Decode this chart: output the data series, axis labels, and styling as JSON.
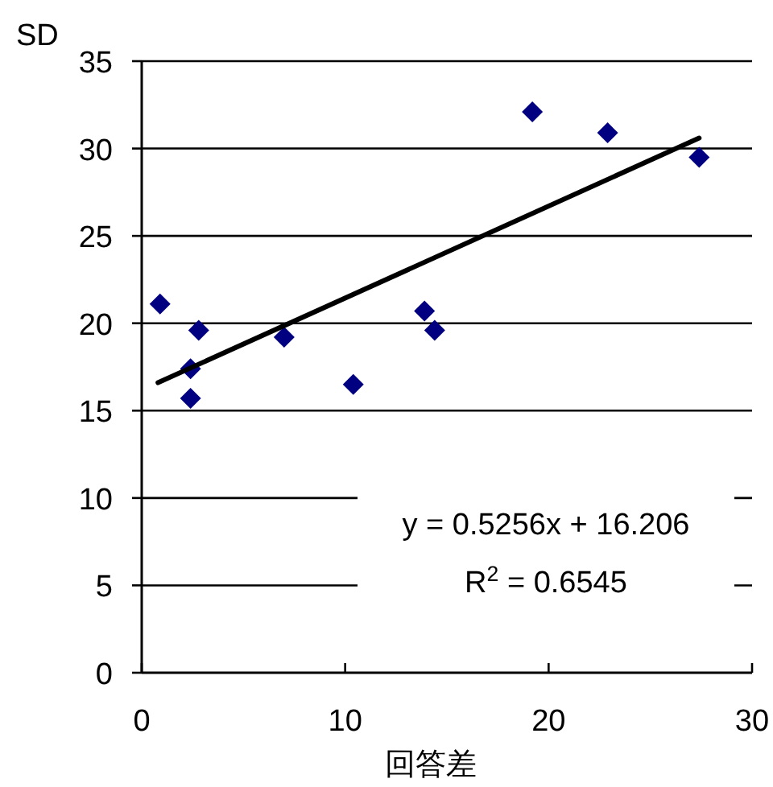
{
  "chart_data": {
    "type": "scatter",
    "xlabel": "回答差",
    "ylabel": "SD",
    "xlim": [
      0,
      30
    ],
    "xticks": [
      0,
      10,
      20,
      30
    ],
    "ylim": [
      0,
      35
    ],
    "yticks": [
      0,
      5,
      10,
      15,
      20,
      25,
      30,
      35
    ],
    "grid": "y",
    "series": [
      {
        "marker": "diamond",
        "color": "#000080",
        "x": [
          0.9,
          2.4,
          2.4,
          2.8,
          7.0,
          10.4,
          13.9,
          14.4,
          19.2,
          22.9,
          27.4
        ],
        "values": [
          21.1,
          17.4,
          15.7,
          19.6,
          19.2,
          16.5,
          20.7,
          19.6,
          32.1,
          30.9,
          29.5
        ]
      },
      {
        "type": "line",
        "marker": "none",
        "color": "#000000",
        "x": [
          0.8,
          27.4
        ],
        "values": [
          16.6,
          30.6
        ]
      }
    ],
    "annotations": [
      "y = 0.5256x + 16.206",
      "R$^{2}$ = 0.6545"
    ]
  }
}
